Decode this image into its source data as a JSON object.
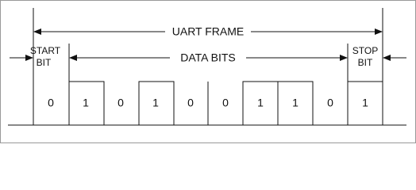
{
  "labels": {
    "frame": "UART FRAME",
    "data": "DATA BITS",
    "start": [
      "START",
      "BIT"
    ],
    "stop": [
      "STOP",
      "BIT"
    ]
  },
  "bits": [
    "0",
    "1",
    "0",
    "1",
    "0",
    "0",
    "1",
    "1",
    "0",
    "1"
  ]
}
